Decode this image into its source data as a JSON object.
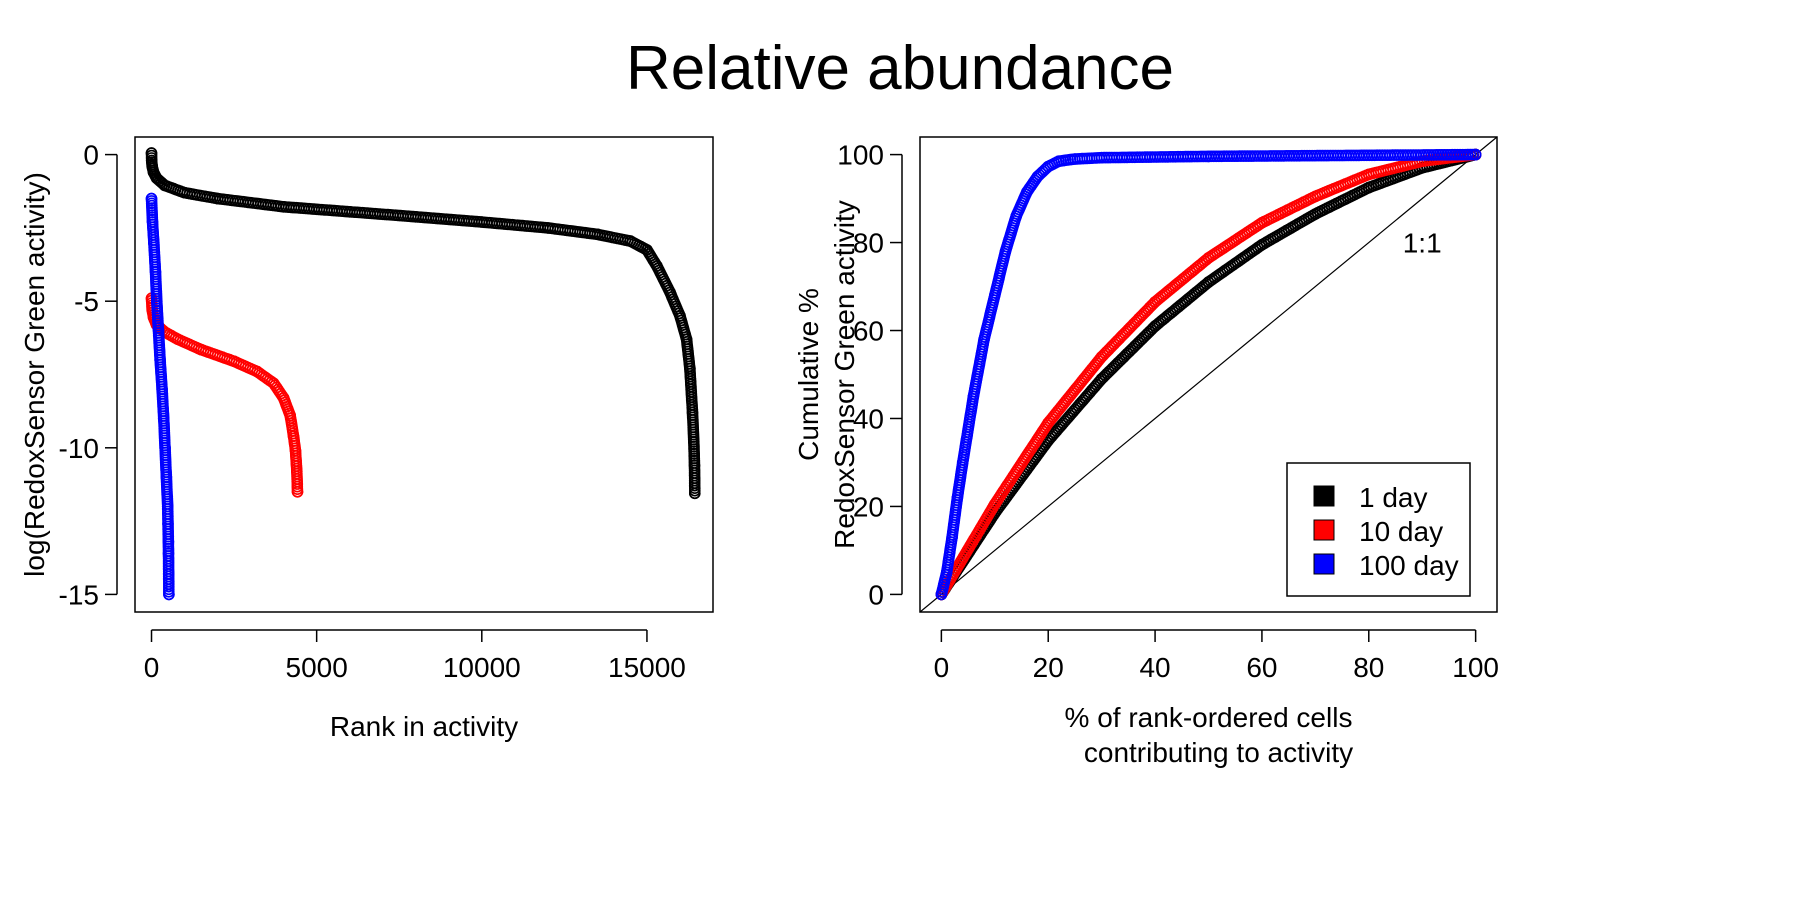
{
  "figure_title": "Relative abundance",
  "colors": {
    "1 day": "#000000",
    "10 day": "#ff0000",
    "100 day": "#0000ff"
  },
  "chart_data": [
    {
      "type": "scatter",
      "xlabel": "Rank in activity",
      "ylabel": "log(RedoxSensor Green activity)",
      "xlim": [
        -500,
        17000
      ],
      "ylim": [
        -15.6,
        0.6
      ],
      "xticks": [
        0,
        5000,
        10000,
        15000
      ],
      "yticks": [
        0,
        -5,
        -10,
        -15
      ],
      "marker": "open-circle",
      "series": [
        {
          "color_key": "1 day",
          "curve": [
            [
              0,
              0.05
            ],
            [
              5,
              -0.2
            ],
            [
              20,
              -0.4
            ],
            [
              60,
              -0.6
            ],
            [
              150,
              -0.8
            ],
            [
              400,
              -1.05
            ],
            [
              1000,
              -1.3
            ],
            [
              2000,
              -1.5
            ],
            [
              4000,
              -1.78
            ],
            [
              6000,
              -1.95
            ],
            [
              8000,
              -2.12
            ],
            [
              10000,
              -2.3
            ],
            [
              12000,
              -2.5
            ],
            [
              13500,
              -2.72
            ],
            [
              14500,
              -2.95
            ],
            [
              15000,
              -3.25
            ],
            [
              15300,
              -3.8
            ],
            [
              15700,
              -4.7
            ],
            [
              16000,
              -5.5
            ],
            [
              16200,
              -6.3
            ],
            [
              16300,
              -7.3
            ],
            [
              16380,
              -8.8
            ],
            [
              16420,
              -9.8
            ],
            [
              16440,
              -10.6
            ],
            [
              16450,
              -11.55
            ]
          ]
        },
        {
          "color_key": "10 day",
          "curve": [
            [
              0,
              -4.9
            ],
            [
              20,
              -5.3
            ],
            [
              60,
              -5.55
            ],
            [
              150,
              -5.8
            ],
            [
              400,
              -6.05
            ],
            [
              800,
              -6.3
            ],
            [
              1500,
              -6.65
            ],
            [
              2500,
              -7.05
            ],
            [
              3200,
              -7.4
            ],
            [
              3700,
              -7.8
            ],
            [
              4000,
              -8.3
            ],
            [
              4200,
              -8.9
            ],
            [
              4300,
              -9.6
            ],
            [
              4360,
              -10.1
            ],
            [
              4400,
              -10.8
            ],
            [
              4420,
              -11.5
            ]
          ]
        },
        {
          "color_key": "100 day",
          "curve": [
            [
              0,
              -1.5
            ],
            [
              30,
              -2.3
            ],
            [
              70,
              -3.0
            ],
            [
              120,
              -4.0
            ],
            [
              160,
              -5.0
            ],
            [
              210,
              -6.0
            ],
            [
              260,
              -7.0
            ],
            [
              320,
              -8.0
            ],
            [
              370,
              -9.0
            ],
            [
              410,
              -10.0
            ],
            [
              450,
              -11.0
            ],
            [
              490,
              -12.0
            ],
            [
              500,
              -12.6
            ],
            [
              510,
              -13.2
            ],
            [
              515,
              -13.6
            ],
            [
              520,
              -14.3
            ],
            [
              525,
              -15.0
            ]
          ]
        }
      ]
    },
    {
      "type": "scatter",
      "xlabel_lines": [
        "% of rank-ordered cells",
        "contributing to activity"
      ],
      "ylabel_lines": [
        "Cumulative %",
        "RedoxSensor Green activity"
      ],
      "xlim": [
        -4,
        104
      ],
      "ylim": [
        -4,
        104
      ],
      "xticks": [
        0,
        20,
        40,
        60,
        80,
        100
      ],
      "yticks": [
        0,
        20,
        40,
        60,
        80,
        100
      ],
      "marker": "open-circle",
      "reference_line": {
        "label": "1:1",
        "from": [
          0,
          0
        ],
        "to": [
          100,
          100
        ]
      },
      "legend": {
        "position": "bottom-right",
        "entries": [
          {
            "label": "1 day",
            "color_key": "1 day"
          },
          {
            "label": "10 day",
            "color_key": "10 day"
          },
          {
            "label": "100 day",
            "color_key": "100 day"
          }
        ]
      },
      "series": [
        {
          "color_key": "1 day",
          "curve": [
            [
              0,
              0
            ],
            [
              10,
              18.5
            ],
            [
              20,
              35
            ],
            [
              30,
              49
            ],
            [
              40,
              61
            ],
            [
              50,
              71
            ],
            [
              60,
              79.5
            ],
            [
              70,
              86.5
            ],
            [
              80,
              92.5
            ],
            [
              90,
              97
            ],
            [
              100,
              100
            ]
          ]
        },
        {
          "color_key": "10 day",
          "curve": [
            [
              0,
              0
            ],
            [
              10,
              20.5
            ],
            [
              20,
              39
            ],
            [
              30,
              54
            ],
            [
              40,
              66.5
            ],
            [
              50,
              76.5
            ],
            [
              60,
              84.5
            ],
            [
              70,
              90.5
            ],
            [
              80,
              95.5
            ],
            [
              90,
              98.5
            ],
            [
              100,
              100
            ]
          ]
        },
        {
          "color_key": "100 day",
          "curve": [
            [
              0,
              0
            ],
            [
              1,
              5
            ],
            [
              2,
              13
            ],
            [
              3,
              22
            ],
            [
              4,
              30
            ],
            [
              6,
              45
            ],
            [
              8,
              58
            ],
            [
              10,
              68
            ],
            [
              12,
              78
            ],
            [
              14,
              86
            ],
            [
              16,
              91.5
            ],
            [
              18,
              95
            ],
            [
              20,
              97.3
            ],
            [
              22,
              98.5
            ],
            [
              25,
              99
            ],
            [
              30,
              99.3
            ],
            [
              50,
              99.6
            ],
            [
              100,
              100
            ]
          ]
        }
      ]
    }
  ]
}
